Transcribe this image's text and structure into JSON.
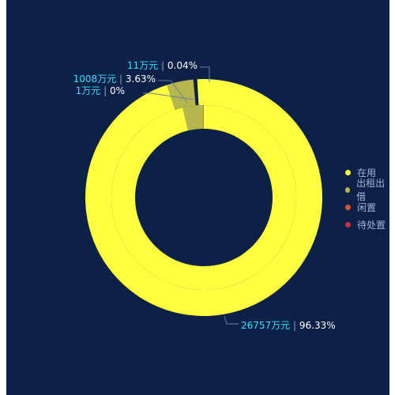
{
  "chart_data": {
    "type": "pie",
    "subtype": "nested-donut",
    "categories": [
      "在用",
      "出租出借",
      "闲置",
      "待处置"
    ],
    "colors": [
      "#ffff3f",
      "#b4b84c",
      "#d8532f",
      "#c7313a"
    ],
    "outer_ring": {
      "values": [
        26757,
        1008,
        11,
        1
      ],
      "labels": [
        {
          "value": "26757万元",
          "percent": "96.33%"
        },
        {
          "value": "1008万元",
          "percent": "3.63%"
        },
        {
          "value": "11万元",
          "percent": "0.04%"
        },
        {
          "value": "1万元",
          "percent": "0%"
        }
      ]
    },
    "inner_ring": {
      "values": [
        26757,
        1008,
        11,
        1
      ]
    },
    "legend": {
      "position": "right",
      "items": [
        "在用",
        "出租出借",
        "闲置",
        "待处置"
      ]
    }
  },
  "colors": {
    "background": "#0c2147",
    "label_value": "#2fe0ff",
    "label_percent": "#ffffff",
    "separator": "#8fa2c0",
    "leader_line": "#6c7e9c",
    "legend_text": "#9fb5d8"
  }
}
